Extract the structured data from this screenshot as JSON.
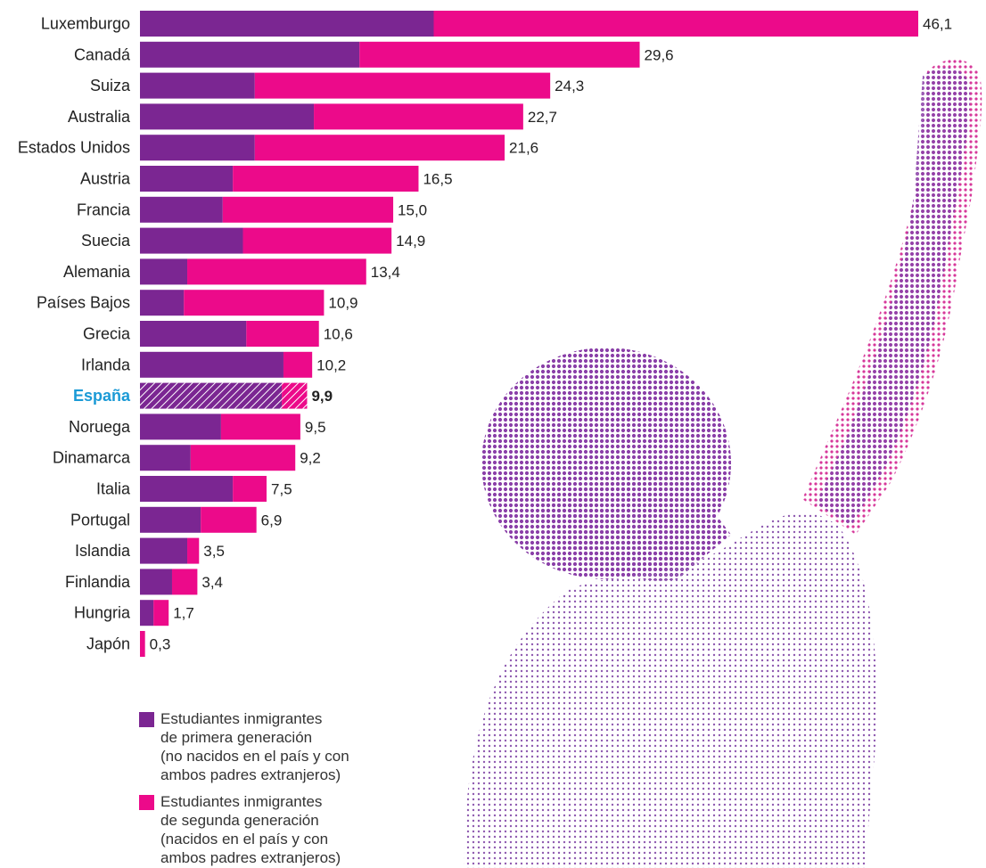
{
  "colors": {
    "first_generation": "#7b2692",
    "second_generation": "#ec0a8a",
    "highlight_label": "#1b9ad6",
    "illustration": "#8a3fa8"
  },
  "illustration": {
    "icon": "raised-fist-student-halftone-icon"
  },
  "chart_data": {
    "type": "bar",
    "orientation": "horizontal",
    "stacked": true,
    "categories": [
      "Luxemburgo",
      "Canadá",
      "Suiza",
      "Australia",
      "Estados Unidos",
      "Austria",
      "Francia",
      "Suecia",
      "Alemania",
      "Países Bajos",
      "Grecia",
      "Irlanda",
      "España",
      "Noruega",
      "Dinamarca",
      "Italia",
      "Portugal",
      "Islandia",
      "Finlandia",
      "Hungria",
      "Japón"
    ],
    "totals": [
      46.1,
      29.6,
      24.3,
      22.7,
      21.6,
      16.5,
      15.0,
      14.9,
      13.4,
      10.9,
      10.6,
      10.2,
      9.9,
      9.5,
      9.2,
      7.5,
      6.9,
      3.5,
      3.4,
      1.7,
      0.3
    ],
    "value_labels": [
      "46,1",
      "29,6",
      "24,3",
      "22,7",
      "21,6",
      "16,5",
      "15,0",
      "14,9",
      "13,4",
      "10,9",
      "10,6",
      "10,2",
      "9,9",
      "9,5",
      "9,2",
      "7,5",
      "6,9",
      "3,5",
      "3,4",
      "1,7",
      "0,3"
    ],
    "series": [
      {
        "key": "first_generation",
        "values": [
          17.4,
          13.0,
          6.8,
          10.3,
          6.8,
          5.5,
          4.9,
          6.1,
          2.8,
          2.6,
          6.3,
          8.5,
          8.4,
          4.8,
          3.0,
          5.5,
          3.6,
          2.8,
          1.9,
          0.8,
          0.0
        ]
      },
      {
        "key": "second_generation",
        "values": [
          28.7,
          16.6,
          17.5,
          12.4,
          14.8,
          11.0,
          10.1,
          8.8,
          10.6,
          8.3,
          4.3,
          1.7,
          1.5,
          4.7,
          6.2,
          2.0,
          3.3,
          0.7,
          1.5,
          0.9,
          0.3
        ]
      }
    ],
    "highlight": "España",
    "xlim": [
      0,
      46.1
    ],
    "grid": false,
    "legend_position": "bottom-left",
    "legend": [
      {
        "key": "first_generation",
        "text": "Estudiantes inmigrantes\nde primera generación\n(no nacidos en el país y con\nambos padres extranjeros)"
      },
      {
        "key": "second_generation",
        "text": "Estudiantes inmigrantes\nde segunda generación\n(nacidos en el país y con\nambos padres extranjeros)"
      }
    ]
  }
}
